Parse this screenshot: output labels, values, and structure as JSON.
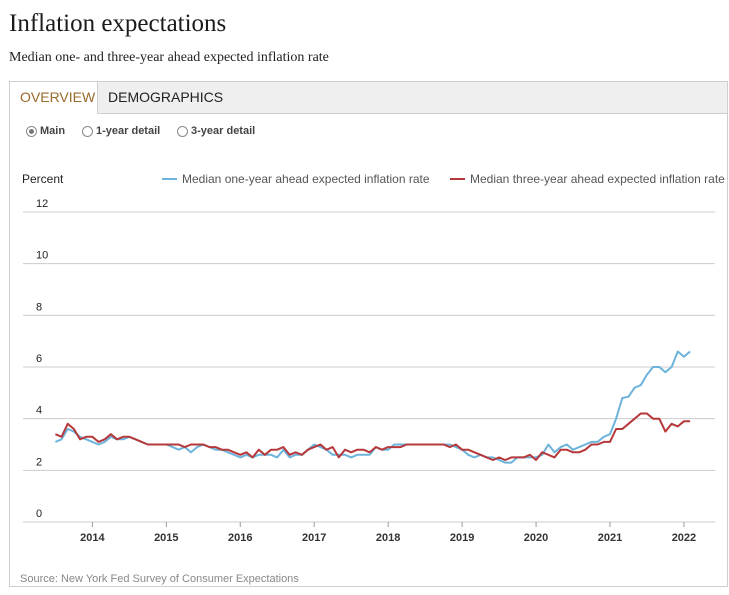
{
  "header": {
    "title": "Inflation expectations",
    "subtitle": "Median one- and three-year ahead expected inflation rate"
  },
  "tabs": [
    {
      "label": "OVERVIEW",
      "active": true
    },
    {
      "label": "DEMOGRAPHICS",
      "active": false
    }
  ],
  "radios": [
    {
      "label": "Main",
      "checked": true
    },
    {
      "label": "1-year detail",
      "checked": false
    },
    {
      "label": "3-year detail",
      "checked": false
    }
  ],
  "source": "Source: New York Fed Survey of Consumer Expectations",
  "colors": {
    "one_year": "#6cb4dc",
    "three_year": "#b5383b",
    "grid": "#cccccc",
    "active_tab_text": "#9a6a2a"
  },
  "chart_data": {
    "type": "line",
    "ylabel": "Percent",
    "ylim": [
      0,
      12
    ],
    "yticks": [
      "0",
      "2",
      "4",
      "6",
      "8",
      "10",
      "12"
    ],
    "xlim": [
      2013.4,
      2022.42
    ],
    "xticks": [
      "2014",
      "2015",
      "2016",
      "2017",
      "2018",
      "2019",
      "2020",
      "2021",
      "2022"
    ],
    "grid": true,
    "legend_position": "top",
    "series": [
      {
        "name": "Median one-year ahead expected inflation rate",
        "color": "#6cb4dc",
        "x_start": 2013.5,
        "step": 0.08333,
        "values": [
          3.1,
          3.2,
          3.6,
          3.5,
          3.3,
          3.2,
          3.1,
          3.0,
          3.1,
          3.3,
          3.2,
          3.2,
          3.3,
          3.2,
          3.1,
          3.0,
          3.0,
          3.0,
          3.0,
          2.9,
          2.8,
          2.9,
          2.7,
          2.9,
          3.0,
          2.9,
          2.8,
          2.8,
          2.7,
          2.6,
          2.5,
          2.6,
          2.5,
          2.6,
          2.6,
          2.6,
          2.5,
          2.8,
          2.5,
          2.6,
          2.6,
          2.8,
          3.0,
          2.9,
          2.8,
          2.6,
          2.6,
          2.6,
          2.5,
          2.6,
          2.6,
          2.6,
          2.9,
          2.8,
          2.8,
          3.0,
          3.0,
          3.0,
          3.0,
          3.0,
          3.0,
          3.0,
          3.0,
          3.0,
          3.0,
          2.9,
          2.8,
          2.6,
          2.5,
          2.6,
          2.5,
          2.5,
          2.4,
          2.3,
          2.3,
          2.5,
          2.5,
          2.5,
          2.5,
          2.6,
          3.0,
          2.7,
          2.9,
          3.0,
          2.8,
          2.9,
          3.0,
          3.1,
          3.1,
          3.3,
          3.4,
          4.0,
          4.8,
          4.85,
          5.2,
          5.3,
          5.7,
          6.0,
          6.0,
          5.8,
          6.0,
          6.6,
          6.4,
          6.6
        ]
      },
      {
        "name": "Median three-year ahead expected inflation rate",
        "color": "#b5383b",
        "x_start": 2013.5,
        "step": 0.08333,
        "values": [
          3.4,
          3.3,
          3.8,
          3.6,
          3.2,
          3.3,
          3.3,
          3.1,
          3.2,
          3.4,
          3.2,
          3.3,
          3.3,
          3.2,
          3.1,
          3.0,
          3.0,
          3.0,
          3.0,
          3.0,
          3.0,
          2.9,
          3.0,
          3.0,
          3.0,
          2.9,
          2.9,
          2.8,
          2.8,
          2.7,
          2.6,
          2.7,
          2.5,
          2.8,
          2.6,
          2.8,
          2.8,
          2.9,
          2.6,
          2.7,
          2.6,
          2.8,
          2.9,
          3.0,
          2.8,
          2.9,
          2.5,
          2.8,
          2.7,
          2.8,
          2.8,
          2.7,
          2.9,
          2.8,
          2.9,
          2.9,
          2.9,
          3.0,
          3.0,
          3.0,
          3.0,
          3.0,
          3.0,
          3.0,
          2.9,
          3.0,
          2.8,
          2.8,
          2.7,
          2.6,
          2.5,
          2.4,
          2.5,
          2.4,
          2.5,
          2.5,
          2.5,
          2.6,
          2.4,
          2.7,
          2.6,
          2.5,
          2.8,
          2.8,
          2.7,
          2.7,
          2.8,
          3.0,
          3.0,
          3.1,
          3.1,
          3.6,
          3.6,
          3.8,
          4.0,
          4.2,
          4.2,
          4.0,
          4.0,
          3.5,
          3.8,
          3.7,
          3.9,
          3.9
        ]
      }
    ]
  }
}
